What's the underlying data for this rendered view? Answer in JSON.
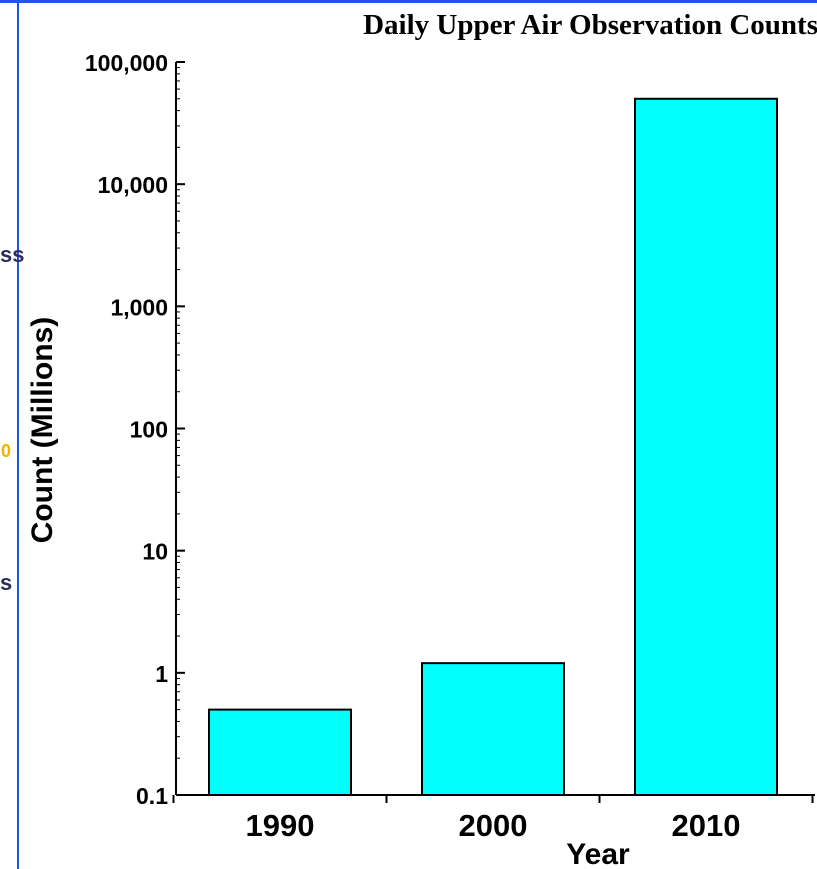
{
  "chart_data": {
    "type": "bar",
    "title": "Daily Upper Air Observation Counts",
    "xlabel": "Year",
    "ylabel": "Count (Millions)",
    "scale": "log",
    "categories": [
      "1990",
      "2000",
      "2010"
    ],
    "values": [
      0.5,
      1.2,
      50000
    ],
    "ylim": [
      0.1,
      100000
    ],
    "yticks": [
      0.1,
      1,
      10,
      100,
      1000,
      10000,
      100000
    ],
    "ytick_labels": [
      "0.1",
      "1",
      "10",
      "100",
      "1,000",
      "10,000",
      "100,000"
    ],
    "grid": false,
    "legend": "none",
    "bar_color": "#00ffff",
    "bar_edge_color": "#000000"
  },
  "frame": {
    "border_color": "#1f56e6",
    "stray_fragments": [
      {
        "text": "ss",
        "color": "#2d2d5c"
      },
      {
        "text": "0",
        "color": "#f0b400"
      },
      {
        "text": "s",
        "color": "#2d2d5c"
      }
    ]
  }
}
